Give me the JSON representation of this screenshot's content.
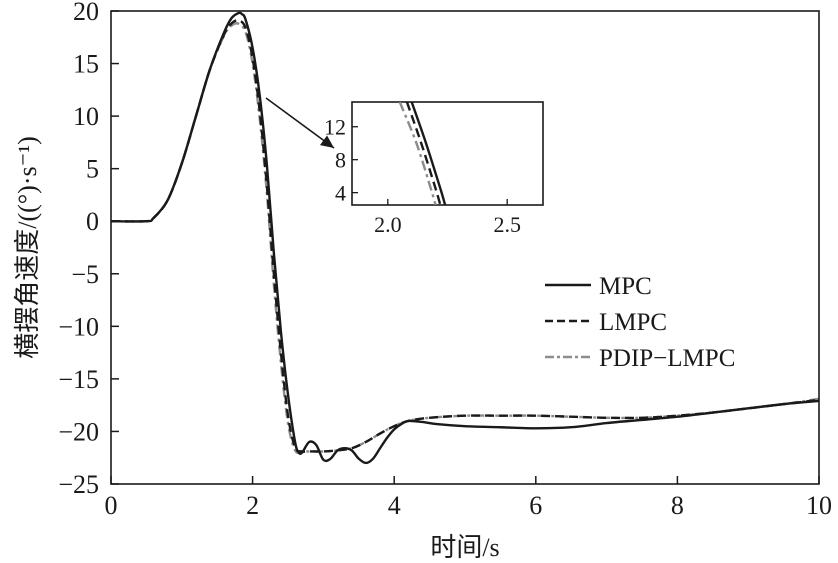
{
  "chart_data": {
    "type": "line",
    "xlabel": "时间/s",
    "ylabel": "横摆角速度/((°)·s⁻¹)",
    "xlim": [
      0,
      10
    ],
    "ylim": [
      -25,
      20
    ],
    "xticks": [
      0,
      2,
      4,
      6,
      8,
      10
    ],
    "yticks": [
      -25,
      -20,
      -15,
      -10,
      -5,
      0,
      5,
      10,
      15,
      20
    ],
    "grid": false,
    "legend_position": "right",
    "series": [
      {
        "name": "MPC",
        "style": "solid",
        "color": "#1a1a1a",
        "x": [
          0,
          0.5,
          0.6,
          0.8,
          1.0,
          1.2,
          1.4,
          1.6,
          1.7,
          1.8,
          1.85,
          1.9,
          2.0,
          2.1,
          2.2,
          2.3,
          2.4,
          2.5,
          2.6,
          2.65,
          2.7,
          2.8,
          2.9,
          3.0,
          3.1,
          3.2,
          3.3,
          3.4,
          3.5,
          3.6,
          3.7,
          3.8,
          3.9,
          4.0,
          4.1,
          4.2,
          4.4,
          4.6,
          5.0,
          5.5,
          6.0,
          6.5,
          7.0,
          7.5,
          8.0,
          8.5,
          9.0,
          9.5,
          10.0
        ],
        "y": [
          0,
          0,
          0.3,
          2.0,
          5.5,
          10.0,
          14.5,
          18.0,
          19.3,
          19.8,
          19.7,
          19.2,
          16.5,
          12.0,
          5.5,
          -3.0,
          -10.5,
          -16.5,
          -21.0,
          -22.0,
          -22.0,
          -21.0,
          -21.3,
          -22.7,
          -22.6,
          -21.8,
          -21.6,
          -21.8,
          -22.6,
          -23.0,
          -22.6,
          -21.6,
          -20.6,
          -19.8,
          -19.3,
          -19.0,
          -19.1,
          -19.3,
          -19.5,
          -19.6,
          -19.7,
          -19.6,
          -19.2,
          -18.9,
          -18.6,
          -18.2,
          -17.8,
          -17.4,
          -17.1
        ]
      },
      {
        "name": "LMPC",
        "style": "dashed",
        "color": "#1a1a1a",
        "x": [
          0,
          0.5,
          0.6,
          0.8,
          1.0,
          1.2,
          1.4,
          1.6,
          1.7,
          1.8,
          1.9,
          2.0,
          2.1,
          2.2,
          2.3,
          2.4,
          2.5,
          2.6,
          2.7,
          2.8,
          3.0,
          3.2,
          3.4,
          3.6,
          3.8,
          4.0,
          4.2,
          4.5,
          5.0,
          5.5,
          6.0,
          6.5,
          7.0,
          7.5,
          8.0,
          8.5,
          9.0,
          9.5,
          10.0
        ],
        "y": [
          0,
          0,
          0.3,
          2.0,
          5.5,
          10.0,
          14.5,
          17.8,
          18.8,
          19.1,
          18.4,
          15.5,
          10.5,
          3.5,
          -5.0,
          -12.5,
          -18.5,
          -21.5,
          -21.9,
          -21.9,
          -21.9,
          -21.8,
          -21.6,
          -21.0,
          -20.2,
          -19.5,
          -19.0,
          -18.7,
          -18.5,
          -18.5,
          -18.5,
          -18.6,
          -18.7,
          -18.7,
          -18.5,
          -18.2,
          -17.8,
          -17.4,
          -17.0
        ]
      },
      {
        "name": "PDIP−LMPC",
        "style": "dashdot",
        "color": "#8c8c8c",
        "x": [
          0,
          0.5,
          0.6,
          0.8,
          1.0,
          1.2,
          1.4,
          1.6,
          1.7,
          1.8,
          1.9,
          2.0,
          2.1,
          2.2,
          2.3,
          2.4,
          2.5,
          2.6,
          2.7,
          2.8,
          3.0,
          3.2,
          3.4,
          3.6,
          3.8,
          4.0,
          4.2,
          4.5,
          5.0,
          5.5,
          6.0,
          6.5,
          7.0,
          7.5,
          8.0,
          8.5,
          9.0,
          9.5,
          10.0
        ],
        "y": [
          0,
          0,
          0.3,
          2.0,
          5.5,
          10.0,
          14.5,
          17.7,
          18.6,
          18.8,
          18.0,
          15.0,
          9.8,
          2.8,
          -6.0,
          -13.5,
          -19.2,
          -21.8,
          -21.9,
          -21.9,
          -21.9,
          -21.8,
          -21.6,
          -21.0,
          -20.2,
          -19.5,
          -19.0,
          -18.7,
          -18.5,
          -18.5,
          -18.5,
          -18.6,
          -18.7,
          -18.7,
          -18.5,
          -18.2,
          -17.8,
          -17.4,
          -16.9
        ]
      }
    ],
    "inset": {
      "xlim": [
        1.85,
        2.65
      ],
      "ylim": [
        2.5,
        15
      ],
      "xticks": [
        2.0,
        2.5
      ],
      "yticks": [
        4,
        8,
        12
      ],
      "series": [
        {
          "name": "MPC",
          "x": [
            2.1,
            2.16,
            2.22,
            2.24
          ],
          "y": [
            15,
            10,
            4.5,
            2.5
          ]
        },
        {
          "name": "LMPC",
          "x": [
            2.08,
            2.14,
            2.2,
            2.22
          ],
          "y": [
            15,
            10,
            4.5,
            2.5
          ]
        },
        {
          "name": "PDIP−LMPC",
          "x": [
            2.05,
            2.12,
            2.18,
            2.2
          ],
          "y": [
            15,
            10,
            4.5,
            2.5
          ]
        }
      ]
    }
  }
}
